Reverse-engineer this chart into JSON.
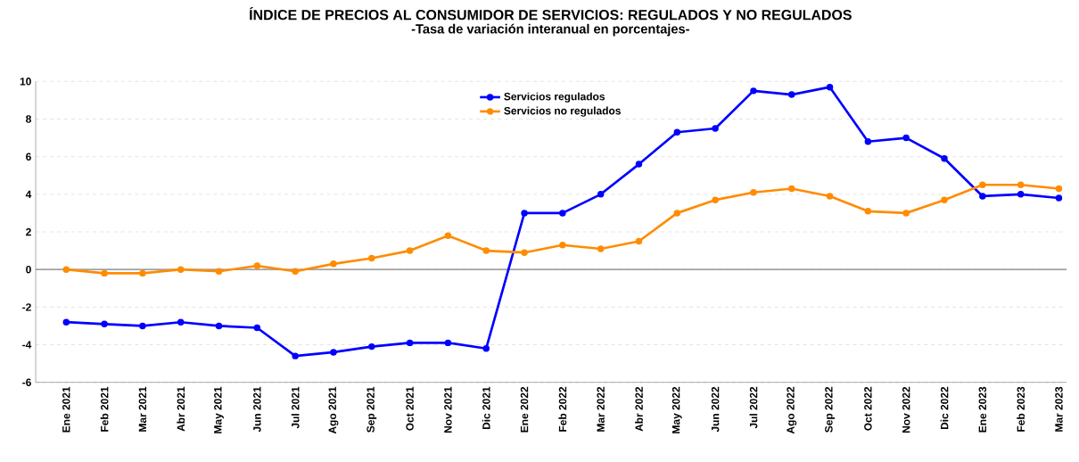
{
  "chart_data": {
    "type": "line",
    "title": "ÍNDICE DE PRECIOS AL CONSUMIDOR DE SERVICIOS: REGULADOS Y NO REGULADOS",
    "subtitle": "-Tasa de variación interanual en porcentajes-",
    "categories": [
      "Ene 2021",
      "Feb 2021",
      "Mar 2021",
      "Abr 2021",
      "May 2021",
      "Jun 2021",
      "Jul 2021",
      "Ago 2021",
      "Sep 2021",
      "Oct 2021",
      "Nov 2021",
      "Dic 2021",
      "Ene 2022",
      "Feb 2022",
      "Mar 2022",
      "Abr 2022",
      "May 2022",
      "Jun 2022",
      "Jul 2022",
      "Ago 2022",
      "Sep 2022",
      "Oct 2022",
      "Nov 2022",
      "Dic 2022",
      "Ene 2023",
      "Feb 2023",
      "Mar 2023"
    ],
    "series": [
      {
        "name": "Servicios regulados",
        "color": "#0000ff",
        "values": [
          -2.8,
          -2.9,
          -3.0,
          -2.8,
          -3.0,
          -3.1,
          -4.6,
          -4.4,
          -4.1,
          -3.9,
          -3.9,
          -4.2,
          3.0,
          3.0,
          4.0,
          5.6,
          7.3,
          7.5,
          9.5,
          9.3,
          9.7,
          6.8,
          7.0,
          5.9,
          3.9,
          4.0,
          3.8
        ]
      },
      {
        "name": "Servicios no regulados",
        "color": "#ff8c00",
        "values": [
          0.0,
          -0.2,
          -0.2,
          0.0,
          -0.1,
          0.2,
          -0.1,
          0.3,
          0.6,
          1.0,
          1.8,
          1.0,
          0.9,
          1.3,
          1.1,
          1.5,
          3.0,
          3.7,
          4.1,
          4.3,
          3.9,
          3.1,
          3.0,
          3.7,
          4.5,
          4.5,
          4.3
        ]
      }
    ],
    "ylim": [
      -6,
      10
    ],
    "yticks": [
      -6,
      -4,
      -2,
      0,
      2,
      4,
      6,
      8,
      10
    ],
    "grid": "y",
    "legend": "top",
    "marker": "circle",
    "line_style": "solid",
    "ref_lines": [
      {
        "axis": "y",
        "value": 0,
        "color": "#808080"
      }
    ]
  }
}
